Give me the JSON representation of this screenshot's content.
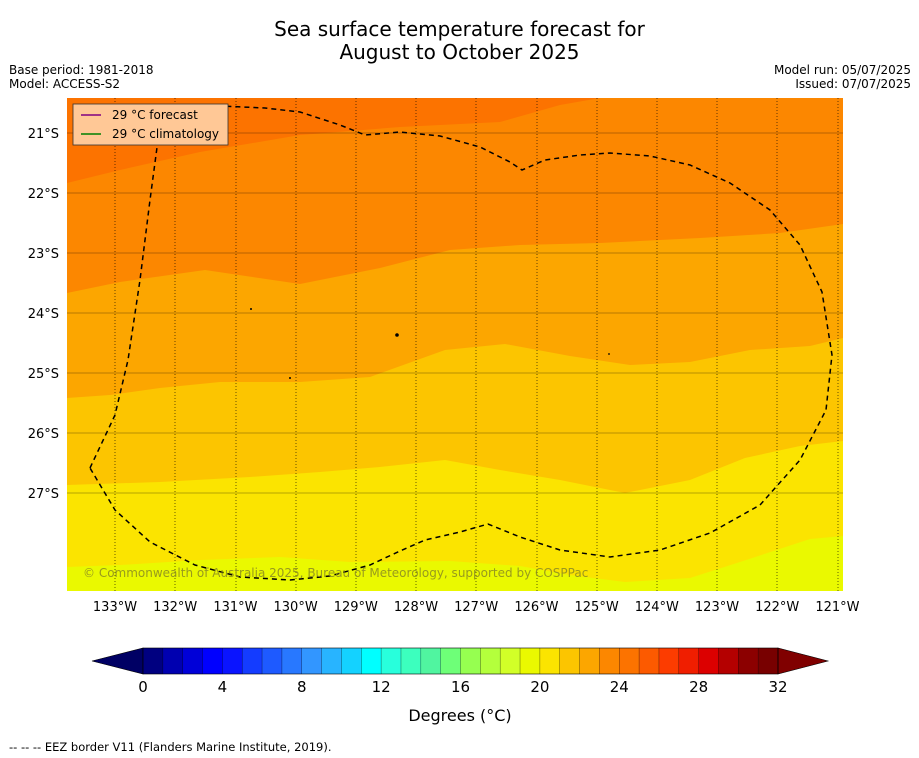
{
  "title_line1": "Sea surface temperature forecast for",
  "title_line2": "August to October 2025",
  "base_period": "Base period: 1981-2018",
  "model": "Model: ACCESS-S2",
  "model_run": "Model run: 05/07/2025",
  "issued": "Issued: 07/07/2025",
  "legend": {
    "forecast_label": "29 °C  forecast",
    "climatology_label": "29 °C  climatology",
    "forecast_color": "#800080",
    "climatology_color": "#008000"
  },
  "map": {
    "lon_labels": [
      "133°W",
      "132°W",
      "131°W",
      "130°W",
      "129°W",
      "128°W",
      "127°W",
      "126°W",
      "125°W",
      "124°W",
      "123°W",
      "122°W",
      "121°W"
    ],
    "lat_labels": [
      "21°S",
      "22°S",
      "23°S",
      "24°S",
      "25°S",
      "26°S",
      "27°S"
    ],
    "copyright": "© Commonwealth of Australia 2025, Bureau of Meteorology, supported by COSPPac",
    "band_colors": [
      "#eaf900",
      "#fbe400",
      "#fcc500",
      "#fca600",
      "#fc8700",
      "#fc7300"
    ]
  },
  "colorbar": {
    "tick_labels": [
      "0",
      "4",
      "8",
      "12",
      "16",
      "20",
      "24",
      "28",
      "32"
    ],
    "label": "Degrees (°C)",
    "colors": [
      "#000080",
      "#0000b0",
      "#0000d8",
      "#0000ff",
      "#0a14ff",
      "#143cff",
      "#1e5aff",
      "#2878ff",
      "#3296ff",
      "#28b4ff",
      "#14d2ff",
      "#00ffff",
      "#28ffdc",
      "#3cffbe",
      "#50f5a0",
      "#6eff78",
      "#96ff50",
      "#b4ff3c",
      "#d2ff28",
      "#eaf900",
      "#fbe400",
      "#fcc500",
      "#fca600",
      "#fc8700",
      "#fc7300",
      "#fc5a00",
      "#fc3c00",
      "#f01e00",
      "#dc0000",
      "#b40000",
      "#8c0000",
      "#780000"
    ],
    "under_color": "#000064",
    "over_color": "#800000"
  },
  "footer": "--  --  -- EEZ border V11 (Flanders Marine Institute, 2019)."
}
